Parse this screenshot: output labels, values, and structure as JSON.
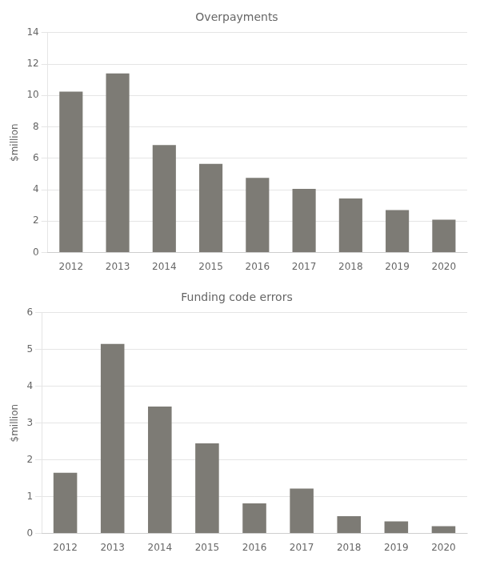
{
  "chart_data": [
    {
      "type": "bar",
      "title": "Overpayments",
      "categories": [
        "2012",
        "2013",
        "2014",
        "2015",
        "2016",
        "2017",
        "2018",
        "2019",
        "2020"
      ],
      "values": [
        10.25,
        11.4,
        6.85,
        5.65,
        4.75,
        4.05,
        3.45,
        2.7,
        2.1
      ],
      "color": "#7d7b75",
      "ylabel": "$million",
      "ylim": [
        0,
        14
      ],
      "yticks": [
        0,
        2,
        4,
        6,
        8,
        10,
        12,
        14
      ],
      "grid": true
    },
    {
      "type": "bar",
      "title": "Funding code errors",
      "categories": [
        "2012",
        "2013",
        "2014",
        "2015",
        "2016",
        "2017",
        "2018",
        "2019",
        "2020"
      ],
      "values": [
        1.65,
        5.15,
        3.45,
        2.45,
        0.82,
        1.22,
        0.47,
        0.33,
        0.2
      ],
      "color": "#7d7b75",
      "ylabel": "$million",
      "ylim": [
        0,
        6
      ],
      "yticks": [
        0,
        1,
        2,
        3,
        4,
        5,
        6
      ],
      "grid": true
    }
  ]
}
